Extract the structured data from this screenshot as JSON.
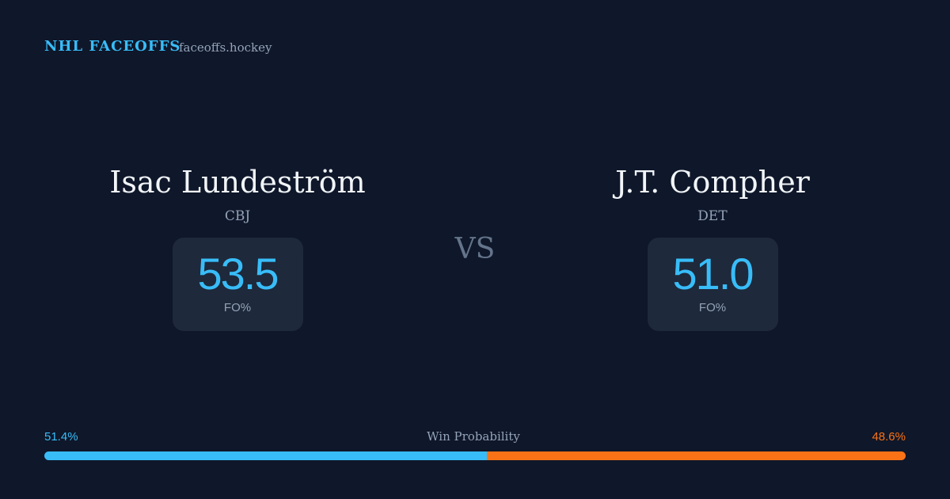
{
  "header": {
    "brand": "NHL FACEOFFS",
    "site": "faceoffs.hockey"
  },
  "players": [
    {
      "name": "Isac Lundeström",
      "team": "CBJ",
      "value": "53.5",
      "stat_label": "FO%"
    },
    {
      "name": "J.T. Compher",
      "team": "DET",
      "value": "51.0",
      "stat_label": "FO%"
    }
  ],
  "vs": "VS",
  "win_probability": {
    "label": "Win Probability",
    "left": {
      "value": 51.4,
      "label": "51.4%",
      "color": "#38bdf8"
    },
    "right": {
      "value": 48.6,
      "label": "48.6%",
      "color": "#f97316"
    }
  }
}
